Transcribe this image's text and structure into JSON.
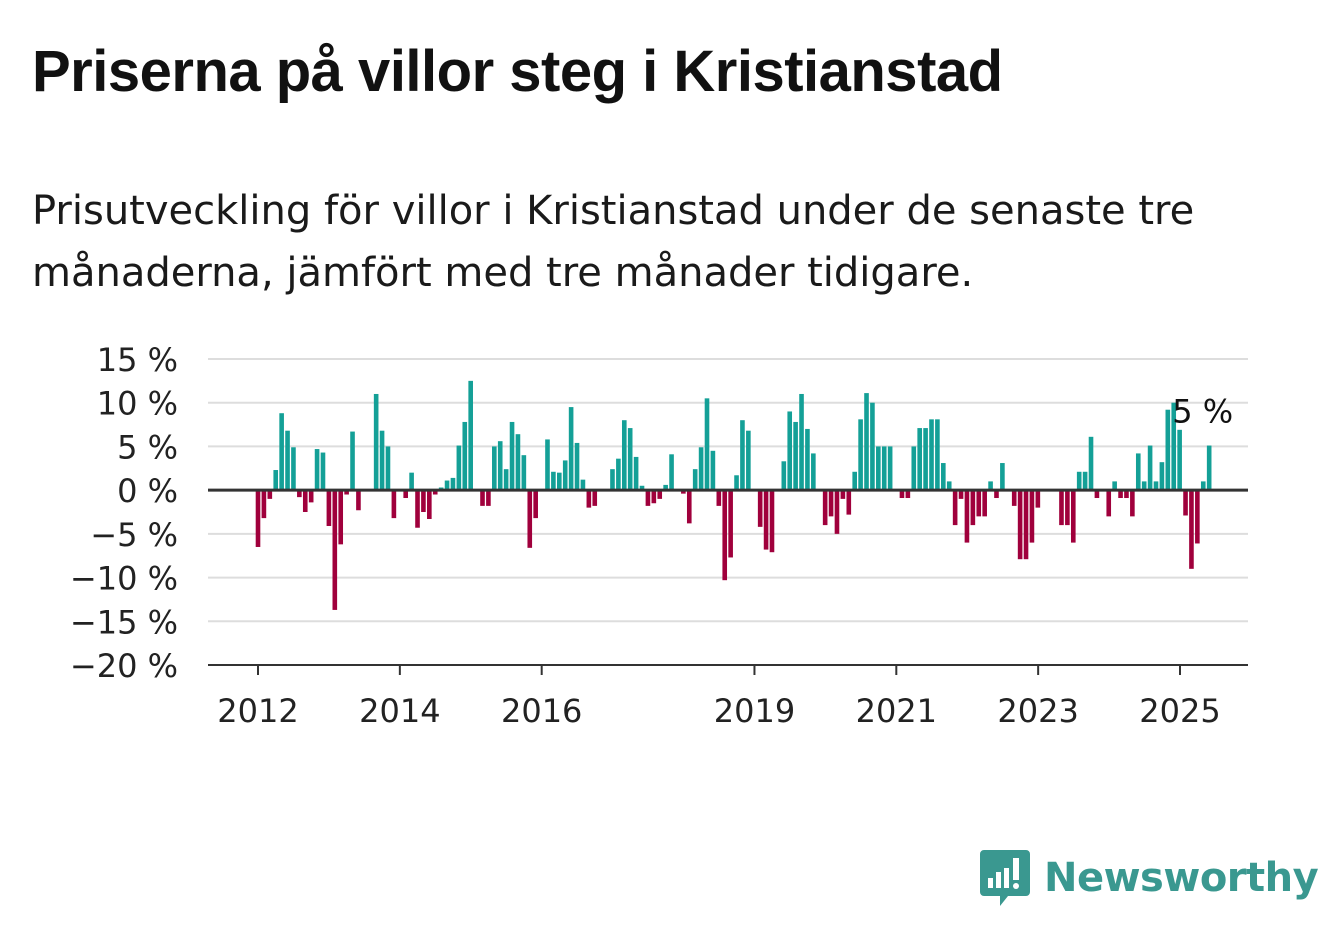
{
  "title": "Priserna på villor steg i Kristianstad",
  "subtitle": "Prisutveckling för villor i Kristianstad under de senaste tre månaderna, jämfört med tre månader tidigare.",
  "brand": {
    "name": "Newsworthy",
    "icon": "newsworthy-logo-icon",
    "color": "#3a9890"
  },
  "colors": {
    "positive": "#14a097",
    "negative": "#a0003c",
    "grid": "#dddddd",
    "axis": "#333333"
  },
  "chart_data": {
    "type": "bar",
    "ylim": [
      -20,
      15
    ],
    "yticks": [
      15,
      10,
      5,
      0,
      -5,
      -10,
      -15,
      -20
    ],
    "ytick_labels": [
      "15 %",
      "10 %",
      "5 %",
      "0 %",
      "−5 %",
      "−10 %",
      "−15 %",
      "−20 %"
    ],
    "xticks": [
      {
        "x": 2012.0,
        "label": "2012"
      },
      {
        "x": 2014.0,
        "label": "2014"
      },
      {
        "x": 2016.0,
        "label": "2016"
      },
      {
        "x": 2019.0,
        "label": "2019"
      },
      {
        "x": 2021.0,
        "label": "2021"
      },
      {
        "x": 2023.0,
        "label": "2023"
      },
      {
        "x": 2025.0,
        "label": "2025"
      }
    ],
    "x_start": 2012.0,
    "x_step": 0.0833,
    "values": [
      -6.5,
      -3.2,
      -1.0,
      2.3,
      8.8,
      6.8,
      4.9,
      -0.8,
      -2.5,
      -1.4,
      4.7,
      4.3,
      -4.1,
      -13.7,
      -6.2,
      -0.5,
      6.7,
      -2.3,
      null,
      null,
      11.0,
      6.8,
      5.0,
      -3.2,
      null,
      -0.9,
      2.0,
      -4.3,
      -2.5,
      -3.3,
      -0.5,
      0.3,
      1.1,
      1.4,
      5.1,
      7.8,
      12.5,
      null,
      -1.8,
      -1.8,
      5.0,
      5.6,
      2.4,
      7.8,
      6.4,
      4.0,
      -6.6,
      -3.2,
      null,
      5.8,
      2.1,
      2.0,
      3.4,
      9.5,
      5.4,
      1.2,
      -2.0,
      -1.8,
      null,
      null,
      2.4,
      3.6,
      8.0,
      7.1,
      3.8,
      0.5,
      -1.8,
      -1.5,
      -1.0,
      0.6,
      4.1,
      null,
      -0.4,
      -3.8,
      2.4,
      4.9,
      10.5,
      4.5,
      -1.8,
      -10.3,
      -7.7,
      1.7,
      8.0,
      6.8,
      null,
      -4.2,
      -6.8,
      -7.1,
      null,
      3.3,
      9.0,
      7.8,
      11.0,
      7.0,
      4.2,
      null,
      -4.0,
      -3.0,
      -5.0,
      -1.0,
      -2.8,
      2.1,
      8.1,
      11.1,
      10.0,
      5.0,
      5.0,
      5.0,
      null,
      -0.9,
      -0.9,
      5.0,
      7.1,
      7.1,
      8.1,
      8.1,
      3.1,
      1.0,
      -4.0,
      -1.0,
      -6.0,
      -4.0,
      -3.0,
      -3.0,
      1.0,
      -0.9,
      3.1,
      null,
      -1.8,
      -7.9,
      -7.9,
      -6.0,
      -2.0,
      null,
      null,
      null,
      -4.0,
      -4.0,
      -6.0,
      2.1,
      2.1,
      6.1,
      -0.9,
      null,
      -3.0,
      1.0,
      -0.9,
      -0.9,
      -3.0,
      4.2,
      1.0,
      5.1,
      1.0,
      3.2,
      9.2,
      10.0,
      6.9,
      -2.9,
      -9.0,
      -6.1,
      1.0,
      5.1
    ],
    "annotation": {
      "label": "5 %",
      "x": 2024.75,
      "y": 10
    }
  }
}
